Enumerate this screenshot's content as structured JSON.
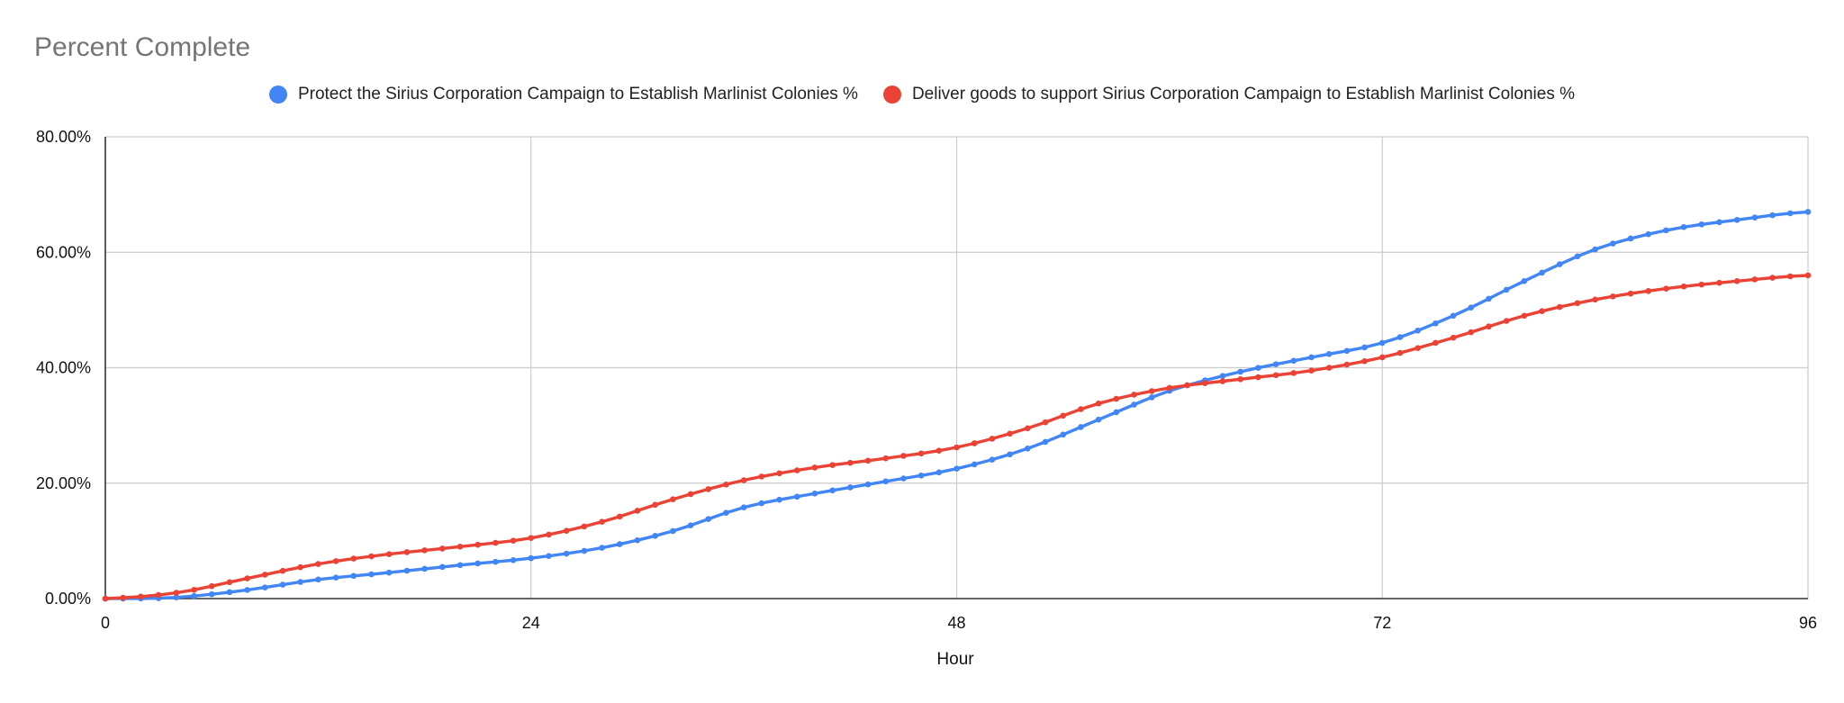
{
  "chart_data": {
    "type": "line",
    "title": "Percent Complete",
    "xlabel": "Hour",
    "ylabel": "",
    "xlim": [
      0,
      96
    ],
    "ylim": [
      0,
      0.8
    ],
    "x_ticks": [
      0,
      24,
      48,
      72,
      96
    ],
    "x_tick_labels": [
      "0",
      "24",
      "48",
      "72",
      "96"
    ],
    "y_ticks": [
      0,
      0.2,
      0.4,
      0.6,
      0.8
    ],
    "y_tick_labels": [
      "0.00%",
      "20.00%",
      "40.00%",
      "60.00%",
      "80.00%"
    ],
    "grid": true,
    "legend": "top",
    "series": [
      {
        "name": "Protect the Sirius Corporation Campaign to Establish Marlinist Colonies %",
        "color": "#4285f4",
        "points": [
          [
            0,
            0
          ],
          [
            4,
            0.002
          ],
          [
            8,
            0.015
          ],
          [
            12,
            0.033
          ],
          [
            16,
            0.045
          ],
          [
            20,
            0.058
          ],
          [
            24,
            0.07
          ],
          [
            28,
            0.088
          ],
          [
            32,
            0.117
          ],
          [
            36,
            0.158
          ],
          [
            40,
            0.182
          ],
          [
            44,
            0.203
          ],
          [
            48,
            0.225
          ],
          [
            52,
            0.26
          ],
          [
            56,
            0.31
          ],
          [
            60,
            0.36
          ],
          [
            64,
            0.393
          ],
          [
            68,
            0.418
          ],
          [
            72,
            0.443
          ],
          [
            76,
            0.49
          ],
          [
            80,
            0.55
          ],
          [
            84,
            0.605
          ],
          [
            88,
            0.638
          ],
          [
            92,
            0.656
          ],
          [
            96,
            0.67
          ]
        ]
      },
      {
        "name": "Deliver goods to support Sirius Corporation Campaign to Establish Marlinist Colonies %",
        "color": "#ea4335",
        "points": [
          [
            0,
            0
          ],
          [
            4,
            0.01
          ],
          [
            8,
            0.035
          ],
          [
            12,
            0.06
          ],
          [
            16,
            0.077
          ],
          [
            20,
            0.09
          ],
          [
            24,
            0.105
          ],
          [
            28,
            0.133
          ],
          [
            32,
            0.172
          ],
          [
            36,
            0.205
          ],
          [
            40,
            0.227
          ],
          [
            44,
            0.243
          ],
          [
            48,
            0.262
          ],
          [
            52,
            0.295
          ],
          [
            56,
            0.338
          ],
          [
            60,
            0.365
          ],
          [
            64,
            0.38
          ],
          [
            68,
            0.395
          ],
          [
            72,
            0.418
          ],
          [
            76,
            0.452
          ],
          [
            80,
            0.49
          ],
          [
            84,
            0.518
          ],
          [
            88,
            0.537
          ],
          [
            92,
            0.55
          ],
          [
            96,
            0.56
          ]
        ]
      }
    ]
  }
}
